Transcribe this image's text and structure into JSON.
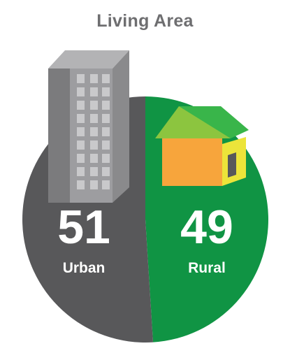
{
  "chart_data": {
    "type": "pie",
    "title": "Living Area",
    "categories": [
      "Urban",
      "Rural"
    ],
    "values": [
      51,
      49
    ],
    "colors": [
      "#58585a",
      "#109444"
    ],
    "icons": [
      "building-icon",
      "house-icon"
    ]
  }
}
